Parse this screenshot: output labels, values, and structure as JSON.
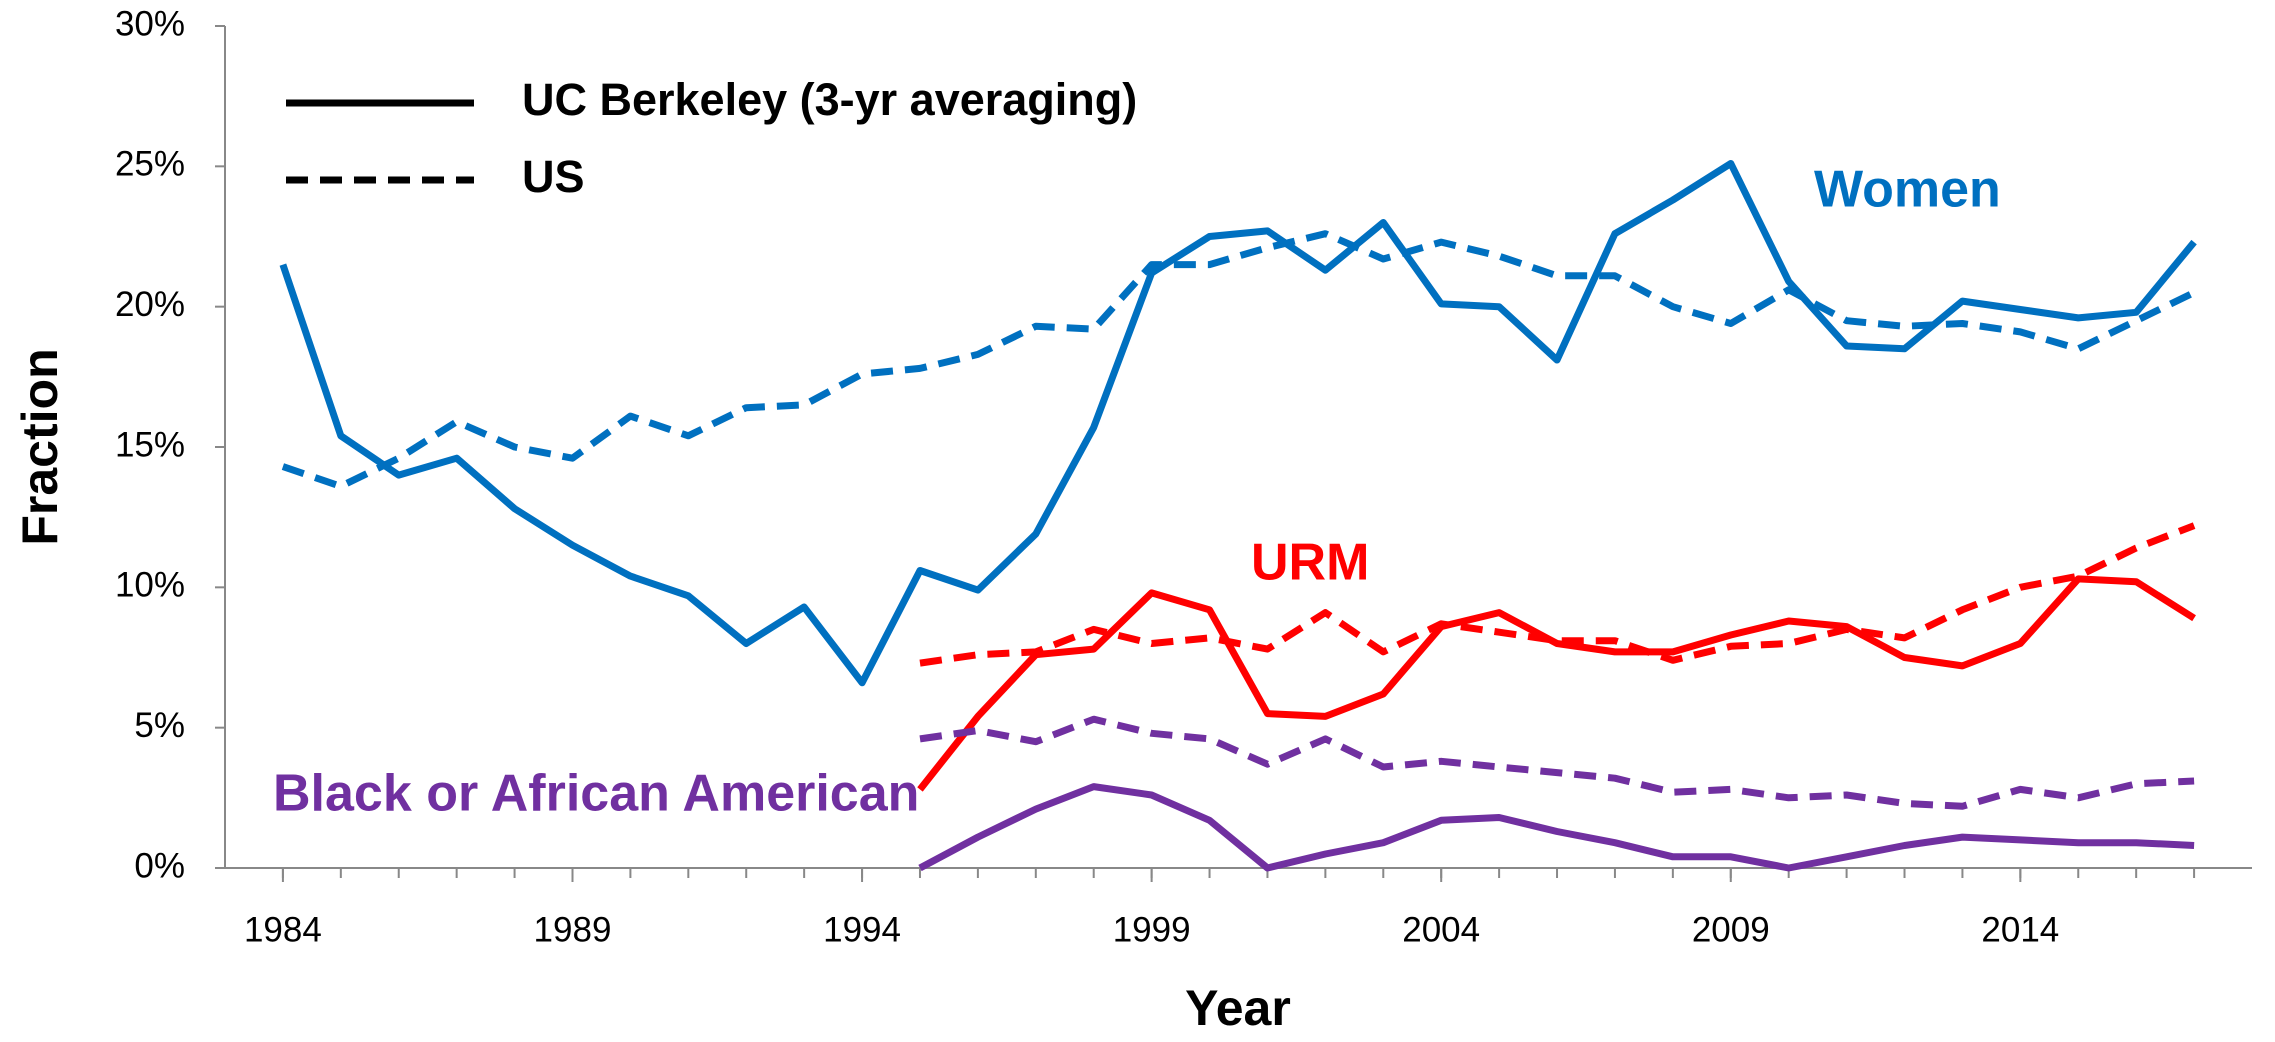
{
  "chart_data": {
    "type": "line",
    "x_label": "Year",
    "y_label": "Fraction",
    "x": [
      1984,
      1985,
      1986,
      1987,
      1988,
      1989,
      1990,
      1991,
      1992,
      1993,
      1994,
      1995,
      1996,
      1997,
      1998,
      1999,
      2000,
      2001,
      2002,
      2003,
      2004,
      2005,
      2006,
      2007,
      2008,
      2009,
      2010,
      2011,
      2012,
      2013,
      2014,
      2015,
      2016,
      2017
    ],
    "xlim": [
      1983,
      2018
    ],
    "xticks": [
      1984,
      1989,
      1994,
      1999,
      2004,
      2009,
      2014
    ],
    "ylim": [
      0,
      30
    ],
    "yticks": [
      {
        "value": 0,
        "label": "0%"
      },
      {
        "value": 5,
        "label": "5%"
      },
      {
        "value": 10,
        "label": "10%"
      },
      {
        "value": 15,
        "label": "15%"
      },
      {
        "value": 20,
        "label": "20%"
      },
      {
        "value": 25,
        "label": "25%"
      },
      {
        "value": 30,
        "label": "30%"
      }
    ],
    "legend": {
      "berkeley": "UC Berkeley (3-yr averaging)",
      "us": "US"
    },
    "groups": [
      {
        "name": "Women",
        "color": "#0070c0",
        "berkeley": [
          21.5,
          15.4,
          14.0,
          14.6,
          12.8,
          11.5,
          10.4,
          9.7,
          8.0,
          9.3,
          6.6,
          10.6,
          9.9,
          11.9,
          15.7,
          21.2,
          22.5,
          22.7,
          21.3,
          23.0,
          20.1,
          20.0,
          18.1,
          22.6,
          23.8,
          25.1,
          20.9,
          18.6,
          18.5,
          20.2,
          19.9,
          19.6,
          19.8,
          22.3
        ],
        "us": [
          14.3,
          13.6,
          14.6,
          15.9,
          15.0,
          14.6,
          16.1,
          15.4,
          16.4,
          16.5,
          17.6,
          17.8,
          18.3,
          19.3,
          19.2,
          21.5,
          21.5,
          22.1,
          22.6,
          21.7,
          22.3,
          21.8,
          21.1,
          21.1,
          20.0,
          19.4,
          20.6,
          19.5,
          19.3,
          19.4,
          19.1,
          18.5,
          19.5,
          20.5
        ]
      },
      {
        "name": "URM",
        "color": "#ff0000",
        "berkeley": [
          null,
          null,
          null,
          null,
          null,
          null,
          null,
          null,
          null,
          null,
          null,
          2.8,
          5.4,
          7.6,
          7.8,
          9.8,
          9.2,
          5.5,
          5.4,
          6.2,
          8.6,
          9.1,
          8.0,
          7.7,
          7.7,
          8.3,
          8.8,
          8.6,
          7.5,
          7.2,
          8.0,
          10.3,
          10.2,
          8.9
        ],
        "us": [
          null,
          null,
          null,
          null,
          null,
          null,
          null,
          null,
          null,
          null,
          null,
          7.3,
          7.6,
          7.7,
          8.5,
          8.0,
          8.2,
          7.8,
          9.1,
          7.7,
          8.7,
          8.4,
          8.1,
          8.1,
          7.4,
          7.9,
          8.0,
          8.5,
          8.2,
          9.2,
          10.0,
          10.4,
          11.4,
          12.2
        ]
      },
      {
        "name": "Black or African American",
        "color": "#7030a0",
        "berkeley": [
          null,
          null,
          null,
          null,
          null,
          null,
          null,
          null,
          null,
          null,
          null,
          0.0,
          1.1,
          2.1,
          2.9,
          2.6,
          1.7,
          0.0,
          0.5,
          0.9,
          1.7,
          1.8,
          1.3,
          0.9,
          0.4,
          0.4,
          0.0,
          0.4,
          0.8,
          1.1,
          1.0,
          0.9,
          0.9,
          0.8
        ],
        "us": [
          null,
          null,
          null,
          null,
          null,
          null,
          null,
          null,
          null,
          null,
          null,
          4.6,
          4.9,
          4.5,
          5.3,
          4.8,
          4.6,
          3.7,
          4.6,
          3.6,
          3.8,
          3.6,
          3.4,
          3.2,
          2.7,
          2.8,
          2.5,
          2.6,
          2.3,
          2.2,
          2.8,
          2.5,
          3.0,
          3.1
        ]
      }
    ]
  }
}
